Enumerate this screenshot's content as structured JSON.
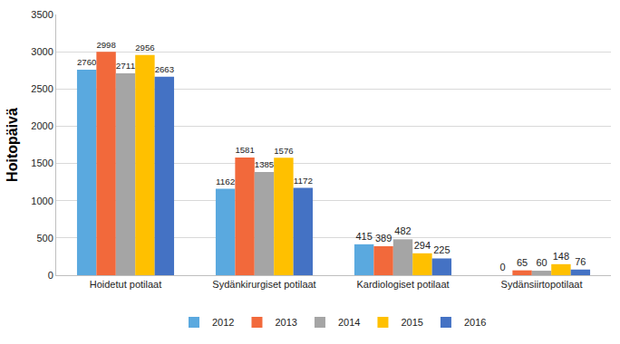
{
  "chart_data": {
    "type": "bar",
    "y_label": "Hoitopäivä",
    "categories": [
      "Hoidetut potilaat",
      "Sydänkirurgiset potilaat",
      "Kardiologiset potilaat",
      "Sydänsiirtopotilaat"
    ],
    "series": [
      {
        "name": "2012",
        "color": "#5aa9df",
        "values": [
          2760,
          1162,
          415,
          0
        ]
      },
      {
        "name": "2013",
        "color": "#f2693b",
        "values": [
          2998,
          1581,
          389,
          65
        ]
      },
      {
        "name": "2014",
        "color": "#a5a5a5",
        "values": [
          2711,
          1385,
          482,
          60
        ]
      },
      {
        "name": "2015",
        "color": "#ffc000",
        "values": [
          2956,
          1576,
          294,
          148
        ]
      },
      {
        "name": "2016",
        "color": "#4472c4",
        "values": [
          2663,
          1172,
          225,
          76
        ]
      }
    ],
    "ylim": [
      0,
      3500
    ],
    "yticks": [
      0,
      500,
      1000,
      1500,
      2000,
      2500,
      3000,
      3500
    ],
    "grid": true,
    "legend": "bottom",
    "data_labels": true
  }
}
